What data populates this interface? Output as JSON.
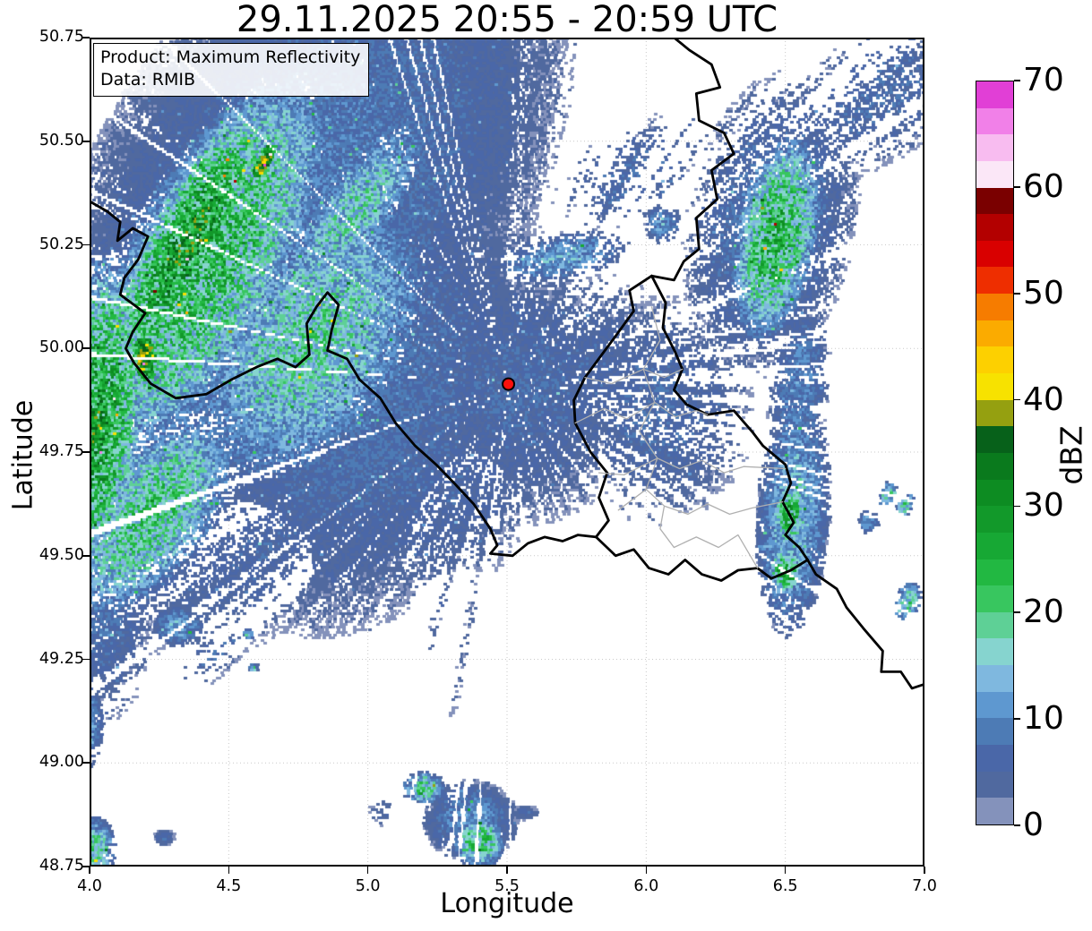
{
  "title": "29.11.2025 20:55 - 20:59 UTC",
  "info_box": {
    "line1": "Product: Maximum Reflectivity",
    "line2": "Data: RMIB"
  },
  "axes": {
    "x": {
      "label": "Longitude",
      "min": 4.0,
      "max": 7.0,
      "ticks": [
        "4.0",
        "4.5",
        "5.0",
        "5.5",
        "6.0",
        "6.5",
        "7.0"
      ]
    },
    "y": {
      "label": "Latitude",
      "min": 48.75,
      "max": 50.75,
      "ticks": [
        "48.75",
        "49.00",
        "49.25",
        "49.50",
        "49.75",
        "50.00",
        "50.25",
        "50.50",
        "50.75"
      ]
    }
  },
  "colorbar": {
    "label": "dBZ",
    "min": 0,
    "max": 70,
    "step": 2.5,
    "ticks": [
      0,
      10,
      20,
      30,
      40,
      50,
      60,
      70
    ],
    "colors": [
      "#8492bb",
      "#50699f",
      "#4a67a8",
      "#4d7bb5",
      "#5e98d0",
      "#7fb8df",
      "#86d4cf",
      "#5ed096",
      "#38c65f",
      "#22b842",
      "#17a834",
      "#12992a",
      "#0d8c22",
      "#0a7a1d",
      "#07611a",
      "#95a010",
      "#f7e200",
      "#fdd000",
      "#fbab00",
      "#f67c00",
      "#ee2e00",
      "#d90000",
      "#b30000",
      "#7a0000",
      "#fbe7f7",
      "#f8bcf0",
      "#f180e8",
      "#e13fd6"
    ]
  },
  "marker": {
    "name": "radar-site",
    "lon": 5.505,
    "lat": 49.914,
    "fill": "#fb100d",
    "edge": "#000000"
  },
  "chart_data": {
    "type": "heatmap",
    "title": "29.11.2025 20:55 - 20:59 UTC",
    "xlabel": "Longitude",
    "ylabel": "Latitude",
    "xlim": [
      4.0,
      7.0
    ],
    "ylim": [
      48.75,
      50.75
    ],
    "value_label": "dBZ",
    "value_range": [
      0,
      70
    ],
    "grid": "dotted",
    "legend_position": "right-colorbar",
    "radial_center": {
      "lon": 5.505,
      "lat": 49.914
    },
    "echo_regions": [
      {
        "name": "nw-blue-field",
        "lon": 4.75,
        "lat": 50.32,
        "rx": 0.5,
        "ry": 0.95,
        "rot": 30,
        "peak": 9,
        "cov": 0.93
      },
      {
        "name": "west-blue-field",
        "lon": 5.0,
        "lat": 49.9,
        "rx": 0.42,
        "ry": 0.62,
        "rot": 20,
        "peak": 8,
        "cov": 0.86
      },
      {
        "name": "radar-area-blue",
        "lon": 5.55,
        "lat": 49.9,
        "rx": 0.3,
        "ry": 0.33,
        "rot": 0,
        "peak": 7,
        "cov": 0.8
      },
      {
        "name": "sw-blue",
        "lon": 4.6,
        "lat": 49.52,
        "rx": 0.22,
        "ry": 0.4,
        "rot": 60,
        "peak": 6,
        "cov": 0.5
      },
      {
        "name": "left-blue-south",
        "lon": 4.05,
        "lat": 49.42,
        "rx": 0.13,
        "ry": 0.33,
        "rot": 0,
        "peak": 8,
        "cov": 0.6
      },
      {
        "name": "nw-green-band",
        "lon": 4.42,
        "lat": 50.2,
        "rx": 0.2,
        "ry": 0.55,
        "rot": 27,
        "peak": 24,
        "cov": 0.97
      },
      {
        "name": "nw-green-band-core",
        "lon": 4.36,
        "lat": 50.26,
        "rx": 0.11,
        "ry": 0.42,
        "rot": 27,
        "peak": 30,
        "cov": 1.0
      },
      {
        "name": "yellow-streak",
        "lon": 4.63,
        "lat": 50.45,
        "rx": 0.022,
        "ry": 0.06,
        "rot": 27,
        "peak": 43,
        "cov": 1.0
      },
      {
        "name": "yellow-spot",
        "lon": 4.2,
        "lat": 49.98,
        "rx": 0.035,
        "ry": 0.075,
        "rot": 0,
        "peak": 41,
        "cov": 1.0
      },
      {
        "name": "west-green-edge",
        "lon": 4.02,
        "lat": 49.82,
        "rx": 0.12,
        "ry": 0.42,
        "rot": 5,
        "peak": 29,
        "cov": 0.95
      },
      {
        "name": "green-tail-sw",
        "lon": 4.22,
        "lat": 49.6,
        "rx": 0.15,
        "ry": 0.3,
        "rot": 35,
        "peak": 21,
        "cov": 0.85
      },
      {
        "name": "green-mid",
        "lon": 4.8,
        "lat": 50.02,
        "rx": 0.25,
        "ry": 0.4,
        "rot": 30,
        "peak": 18,
        "cov": 0.9
      },
      {
        "name": "green-streak-ne",
        "lon": 4.95,
        "lat": 50.33,
        "rx": 0.1,
        "ry": 0.3,
        "rot": 35,
        "peak": 17,
        "cov": 0.85
      },
      {
        "name": "cyan-arcs-north",
        "lon": 5.7,
        "lat": 50.22,
        "rx": 0.06,
        "ry": 0.16,
        "rot": 80,
        "peak": 13,
        "cov": 0.7
      },
      {
        "name": "top-blue-scatter",
        "lon": 5.95,
        "lat": 50.42,
        "rx": 0.12,
        "ry": 0.22,
        "rot": 60,
        "peak": 7,
        "cov": 0.45
      },
      {
        "name": "top-cyan-dot",
        "lon": 6.06,
        "lat": 50.3,
        "rx": 0.045,
        "ry": 0.05,
        "rot": 0,
        "peak": 12,
        "cov": 0.8
      },
      {
        "name": "ne-corner-streaks",
        "lon": 6.85,
        "lat": 50.62,
        "rx": 0.16,
        "ry": 0.28,
        "rot": 51,
        "peak": 7,
        "cov": 0.55
      },
      {
        "name": "ne-green-band",
        "lon": 6.47,
        "lat": 50.27,
        "rx": 0.1,
        "ry": 0.26,
        "rot": 10,
        "peak": 25,
        "cov": 0.92
      },
      {
        "name": "ne-blue-halo",
        "lon": 6.45,
        "lat": 50.3,
        "rx": 0.2,
        "ry": 0.38,
        "rot": 10,
        "peak": 9,
        "cov": 0.7
      },
      {
        "name": "east-band",
        "lon": 6.53,
        "lat": 49.6,
        "rx": 0.085,
        "ry": 0.3,
        "rot": 3,
        "peak": 15,
        "cov": 0.9
      },
      {
        "name": "east-band-green-1",
        "lon": 6.52,
        "lat": 49.6,
        "rx": 0.04,
        "ry": 0.07,
        "rot": 0,
        "peak": 27,
        "cov": 1.0
      },
      {
        "name": "east-band-green-2",
        "lon": 6.5,
        "lat": 49.46,
        "rx": 0.04,
        "ry": 0.06,
        "rot": 0,
        "peak": 27,
        "cov": 1.0
      },
      {
        "name": "east-band-north",
        "lon": 6.55,
        "lat": 49.9,
        "rx": 0.07,
        "ry": 0.22,
        "rot": 5,
        "peak": 10,
        "cov": 0.7
      },
      {
        "name": "east-cyan-dot",
        "lon": 6.43,
        "lat": 49.52,
        "rx": 0.022,
        "ry": 0.02,
        "rot": 0,
        "peak": 14,
        "cov": 1.0
      },
      {
        "name": "far-east-slash-1",
        "lon": 6.87,
        "lat": 49.65,
        "rx": 0.02,
        "ry": 0.035,
        "rot": 20,
        "peak": 19,
        "cov": 0.8
      },
      {
        "name": "far-east-slash-2",
        "lon": 6.93,
        "lat": 49.62,
        "rx": 0.018,
        "ry": 0.035,
        "rot": 20,
        "peak": 19,
        "cov": 0.8
      },
      {
        "name": "far-east-cyan",
        "lon": 6.8,
        "lat": 49.58,
        "rx": 0.025,
        "ry": 0.03,
        "rot": 0,
        "peak": 13,
        "cov": 0.8
      },
      {
        "name": "far-east-slash-3",
        "lon": 6.94,
        "lat": 49.39,
        "rx": 0.03,
        "ry": 0.05,
        "rot": 20,
        "peak": 20,
        "cov": 0.7
      },
      {
        "name": "south-cluster-blue",
        "lon": 5.37,
        "lat": 48.86,
        "rx": 0.11,
        "ry": 0.1,
        "rot": 0,
        "peak": 11,
        "cov": 0.95
      },
      {
        "name": "south-cluster-green",
        "lon": 5.4,
        "lat": 48.81,
        "rx": 0.06,
        "ry": 0.065,
        "rot": 0,
        "peak": 23,
        "cov": 1.0
      },
      {
        "name": "south-green-2",
        "lon": 5.2,
        "lat": 48.94,
        "rx": 0.05,
        "ry": 0.04,
        "rot": 0,
        "peak": 21,
        "cov": 0.95
      },
      {
        "name": "south-blue-dash",
        "lon": 5.57,
        "lat": 48.88,
        "rx": 0.03,
        "ry": 0.02,
        "rot": 0,
        "peak": 6,
        "cov": 0.9
      },
      {
        "name": "south-sparse",
        "lon": 5.08,
        "lat": 48.88,
        "rx": 0.06,
        "ry": 0.04,
        "rot": 0,
        "peak": 5,
        "cov": 0.45
      },
      {
        "name": "left-edge-blue",
        "lon": 4.0,
        "lat": 49.09,
        "rx": 0.035,
        "ry": 0.1,
        "rot": 0,
        "peak": 13,
        "cov": 0.85
      },
      {
        "name": "left-corner-green",
        "lon": 4.02,
        "lat": 48.79,
        "rx": 0.05,
        "ry": 0.08,
        "rot": 0,
        "peak": 19,
        "cov": 0.9
      },
      {
        "name": "small-blue-sw",
        "lon": 4.27,
        "lat": 48.82,
        "rx": 0.025,
        "ry": 0.02,
        "rot": 0,
        "peak": 8,
        "cov": 0.95
      },
      {
        "name": "trail-diagonal",
        "lon": 4.45,
        "lat": 49.26,
        "rx": 0.05,
        "ry": 0.14,
        "rot": 46,
        "peak": 7,
        "cov": 0.5
      },
      {
        "name": "blue-blob-west",
        "lon": 4.32,
        "lat": 49.33,
        "rx": 0.06,
        "ry": 0.05,
        "rot": 0,
        "peak": 13,
        "cov": 0.9
      },
      {
        "name": "green-dash-1",
        "lon": 4.57,
        "lat": 49.31,
        "rx": 0.013,
        "ry": 0.013,
        "rot": 0,
        "peak": 21,
        "cov": 1.0
      },
      {
        "name": "green-dash-2",
        "lon": 4.59,
        "lat": 49.23,
        "rx": 0.012,
        "ry": 0.012,
        "rot": 0,
        "peak": 17,
        "cov": 1.0
      },
      {
        "name": "south-speckle",
        "lon": 5.3,
        "lat": 49.35,
        "rx": 0.28,
        "ry": 0.12,
        "rot": 85,
        "peak": 4,
        "cov": 0.3
      },
      {
        "name": "lux-blue",
        "lon": 6.05,
        "lat": 49.85,
        "rx": 0.22,
        "ry": 0.28,
        "rot": 0,
        "peak": 7,
        "cov": 0.6
      },
      {
        "name": "radar-east-blue",
        "lon": 5.8,
        "lat": 49.95,
        "rx": 0.2,
        "ry": 0.25,
        "rot": 0,
        "peak": 6,
        "cov": 0.65
      },
      {
        "name": "mid-blue-belt",
        "lon": 5.3,
        "lat": 49.65,
        "rx": 0.2,
        "ry": 0.3,
        "rot": 30,
        "peak": 6,
        "cov": 0.6
      }
    ]
  },
  "map": {
    "border_color": "#000000",
    "region_border_color": "#b0b0b0",
    "grid_color": "#c9c9c9",
    "country_borders": [
      [
        [
          4.0,
          50.355
        ],
        [
          4.065,
          50.33
        ],
        [
          4.11,
          50.305
        ],
        [
          4.1,
          50.26
        ],
        [
          4.155,
          50.29
        ],
        [
          4.21,
          50.27
        ],
        [
          4.175,
          50.215
        ],
        [
          4.125,
          50.17
        ],
        [
          4.11,
          50.13
        ],
        [
          4.2,
          50.085
        ],
        [
          4.155,
          50.04
        ],
        [
          4.13,
          50.0
        ],
        [
          4.16,
          49.965
        ],
        [
          4.22,
          49.915
        ],
        [
          4.31,
          49.88
        ],
        [
          4.42,
          49.89
        ],
        [
          4.51,
          49.925
        ],
        [
          4.6,
          49.955
        ],
        [
          4.675,
          49.975
        ],
        [
          4.74,
          49.955
        ],
        [
          4.79,
          49.985
        ],
        [
          4.78,
          50.06
        ],
        [
          4.815,
          50.1
        ],
        [
          4.855,
          50.135
        ],
        [
          4.895,
          50.105
        ],
        [
          4.87,
          50.045
        ],
        [
          4.855,
          49.995
        ],
        [
          4.925,
          49.975
        ],
        [
          4.97,
          49.925
        ],
        [
          5.045,
          49.88
        ],
        [
          5.1,
          49.82
        ],
        [
          5.17,
          49.765
        ],
        [
          5.245,
          49.72
        ],
        [
          5.31,
          49.675
        ],
        [
          5.38,
          49.625
        ],
        [
          5.44,
          49.565
        ],
        [
          5.465,
          49.525
        ],
        [
          5.44,
          49.505
        ],
        [
          5.52,
          49.5
        ],
        [
          5.575,
          49.53
        ],
        [
          5.635,
          49.545
        ],
        [
          5.7,
          49.535
        ],
        [
          5.755,
          49.55
        ],
        [
          5.82,
          49.545
        ]
      ],
      [
        [
          5.82,
          49.545
        ],
        [
          5.865,
          49.585
        ],
        [
          5.83,
          49.64
        ],
        [
          5.86,
          49.7
        ],
        [
          5.8,
          49.75
        ],
        [
          5.745,
          49.82
        ],
        [
          5.74,
          49.875
        ],
        [
          5.78,
          49.93
        ],
        [
          5.835,
          49.98
        ],
        [
          5.89,
          50.03
        ],
        [
          5.955,
          50.09
        ],
        [
          5.94,
          50.14
        ],
        [
          6.02,
          50.175
        ]
      ],
      [
        [
          6.02,
          50.175
        ],
        [
          6.1,
          50.165
        ],
        [
          6.135,
          50.21
        ],
        [
          6.19,
          50.24
        ],
        [
          6.18,
          50.315
        ],
        [
          6.255,
          50.36
        ],
        [
          6.235,
          50.43
        ],
        [
          6.315,
          50.47
        ],
        [
          6.28,
          50.52
        ],
        [
          6.19,
          50.55
        ],
        [
          6.18,
          50.615
        ],
        [
          6.265,
          50.63
        ],
        [
          6.235,
          50.685
        ],
        [
          6.155,
          50.72
        ],
        [
          6.1,
          50.75
        ]
      ],
      [
        [
          6.02,
          50.175
        ],
        [
          6.07,
          50.11
        ],
        [
          6.06,
          50.05
        ],
        [
          6.105,
          49.99
        ],
        [
          6.13,
          49.95
        ],
        [
          6.1,
          49.9
        ],
        [
          6.145,
          49.865
        ],
        [
          6.22,
          49.84
        ],
        [
          6.315,
          49.85
        ],
        [
          6.38,
          49.8
        ],
        [
          6.42,
          49.765
        ],
        [
          6.5,
          49.72
        ],
        [
          6.52,
          49.675
        ],
        [
          6.49,
          49.63
        ],
        [
          6.53,
          49.58
        ],
        [
          6.5,
          49.55
        ],
        [
          6.55,
          49.52
        ],
        [
          6.58,
          49.49
        ]
      ],
      [
        [
          5.82,
          49.545
        ],
        [
          5.89,
          49.5
        ],
        [
          5.955,
          49.515
        ],
        [
          6.01,
          49.47
        ],
        [
          6.08,
          49.455
        ],
        [
          6.14,
          49.49
        ],
        [
          6.2,
          49.455
        ],
        [
          6.27,
          49.44
        ],
        [
          6.33,
          49.465
        ],
        [
          6.4,
          49.47
        ],
        [
          6.45,
          49.445
        ],
        [
          6.52,
          49.465
        ],
        [
          6.58,
          49.49
        ]
      ],
      [
        [
          6.58,
          49.49
        ],
        [
          6.61,
          49.455
        ],
        [
          6.685,
          49.42
        ],
        [
          6.72,
          49.375
        ],
        [
          6.78,
          49.325
        ],
        [
          6.85,
          49.27
        ],
        [
          6.845,
          49.22
        ],
        [
          6.915,
          49.22
        ],
        [
          6.955,
          49.18
        ],
        [
          7.0,
          49.19
        ]
      ]
    ],
    "region_borders": [
      [
        [
          6.02,
          50.1
        ],
        [
          6.05,
          50.02
        ],
        [
          5.99,
          49.95
        ],
        [
          6.03,
          49.87
        ],
        [
          5.975,
          49.8
        ],
        [
          6.04,
          49.735
        ],
        [
          6.0,
          49.66
        ],
        [
          6.065,
          49.62
        ],
        [
          6.05,
          49.565
        ],
        [
          6.1,
          49.52
        ]
      ],
      [
        [
          5.78,
          49.93
        ],
        [
          5.875,
          49.915
        ],
        [
          5.99,
          49.95
        ],
        [
          6.065,
          49.93
        ],
        [
          6.13,
          49.95
        ]
      ],
      [
        [
          5.745,
          49.82
        ],
        [
          5.85,
          49.855
        ],
        [
          5.93,
          49.83
        ],
        [
          6.03,
          49.87
        ],
        [
          6.105,
          49.835
        ],
        [
          6.18,
          49.85
        ],
        [
          6.22,
          49.84
        ]
      ],
      [
        [
          5.83,
          49.7
        ],
        [
          5.92,
          49.695
        ],
        [
          6.04,
          49.735
        ],
        [
          6.12,
          49.71
        ],
        [
          6.2,
          49.73
        ],
        [
          6.28,
          49.7
        ],
        [
          6.35,
          49.715
        ],
        [
          6.5,
          49.71
        ]
      ],
      [
        [
          5.9,
          49.61
        ],
        [
          6.0,
          49.66
        ]
      ],
      [
        [
          6.065,
          49.62
        ],
        [
          6.15,
          49.6
        ],
        [
          6.22,
          49.625
        ],
        [
          6.3,
          49.6
        ],
        [
          6.38,
          49.615
        ],
        [
          6.49,
          49.63
        ]
      ],
      [
        [
          6.1,
          49.52
        ],
        [
          6.18,
          49.545
        ],
        [
          6.26,
          49.52
        ],
        [
          6.33,
          49.55
        ],
        [
          6.4,
          49.47
        ]
      ]
    ]
  }
}
